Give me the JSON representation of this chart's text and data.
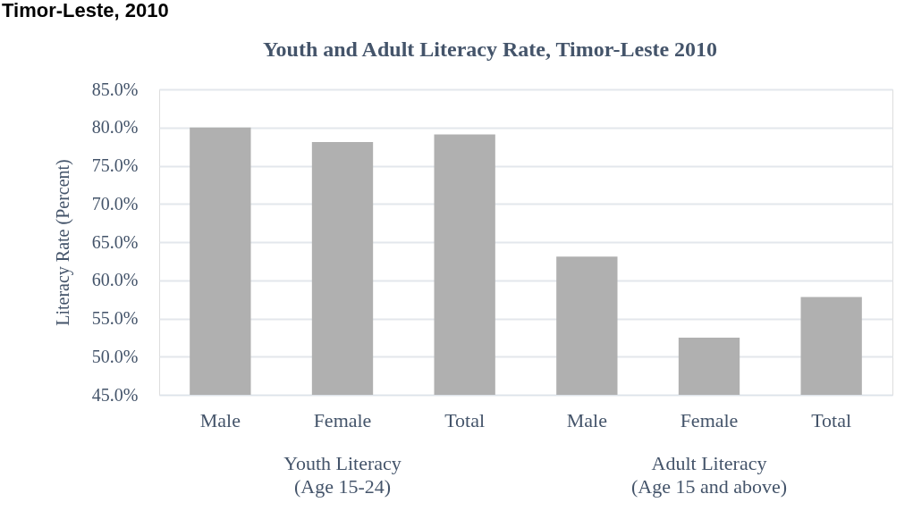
{
  "chart_data": {
    "type": "bar",
    "title": "Youth and Adult Literacy Rate, Timor-Leste 2010",
    "ylabel": "Literacy Rate (Percent)",
    "categories": [
      "Male",
      "Female",
      "Total",
      "Male",
      "Female",
      "Total"
    ],
    "values": [
      80.0,
      78.1,
      79.1,
      63.1,
      52.5,
      57.8
    ],
    "color": "#b0b0b0",
    "ylim": [
      45,
      85
    ],
    "yticks": [
      {
        "value": 45,
        "label": "45.0%"
      },
      {
        "value": 50,
        "label": "50.0%"
      },
      {
        "value": 55,
        "label": "55.0%"
      },
      {
        "value": 60,
        "label": "60.0%"
      },
      {
        "value": 65,
        "label": "65.0%"
      },
      {
        "value": 70,
        "label": "70.0%"
      },
      {
        "value": 75,
        "label": "75.0%"
      },
      {
        "value": 80,
        "label": "80.0%"
      },
      {
        "value": 85,
        "label": "85.0%"
      }
    ],
    "grid": "y",
    "annotations": [
      "Timor-Leste, 2010",
      "Youth Literacy\n(Age 15-24)",
      "Adult Literacy\n(Age 15 and above)"
    ]
  }
}
